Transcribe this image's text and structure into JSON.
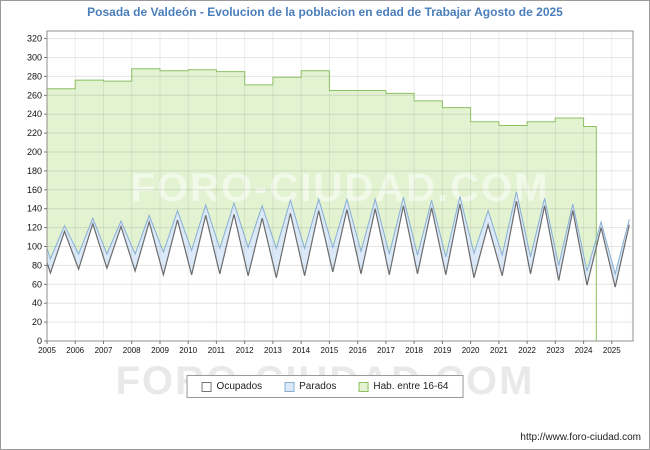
{
  "title": "Posada de Valdeón - Evolucion de la poblacion en edad de Trabajar Agosto de 2025",
  "watermark": "FORO-CIUDAD.COM",
  "footer": {
    "url": "http://www.foro-ciudad.com"
  },
  "colors": {
    "title": "#4a7ebb",
    "axis_border": "#8f8f8f",
    "hab_fill": "#e3f3d2",
    "hab_stroke": "#8cc063",
    "parados_fill": "#dbe9f8",
    "parados_stroke": "#88aed2",
    "ocupados_fill": "#ffffff",
    "ocupados_stroke": "#6b6b6b"
  },
  "legend": [
    {
      "label": "Ocupados",
      "color": "#ffffff",
      "border": "#777777"
    },
    {
      "label": "Parados",
      "color": "#dbe9f8",
      "border": "#88aed2"
    },
    {
      "label": "Hab. entre 16-64",
      "color": "#e3f3d2",
      "border": "#8cc063"
    }
  ],
  "chart_data": {
    "type": "area",
    "title": "Posada de Valdeón - Evolucion de la poblacion en edad de Trabajar Agosto de 2025",
    "xlabel": "",
    "ylabel": "",
    "ylim": [
      0,
      320
    ],
    "y_tick_step": 20,
    "x_ticks": [
      2005,
      2006,
      2007,
      2008,
      2009,
      2010,
      2011,
      2012,
      2013,
      2014,
      2015,
      2016,
      2017,
      2018,
      2019,
      2020,
      2021,
      2022,
      2023,
      2024,
      2025
    ],
    "grid": true,
    "legend_position": "bottom",
    "series": [
      {
        "id": "hab",
        "name": "Hab. entre 16-64",
        "style": "step-area",
        "fill": "#e3f3d2",
        "stroke": "#8cc063",
        "years": [
          2005,
          2006,
          2007,
          2008,
          2009,
          2010,
          2011,
          2012,
          2013,
          2014,
          2015,
          2016,
          2017,
          2018,
          2019,
          2020,
          2021,
          2022,
          2023,
          2024
        ],
        "values": [
          267,
          276,
          275,
          288,
          286,
          287,
          285,
          271,
          279,
          286,
          265,
          265,
          262,
          254,
          247,
          232,
          228,
          232,
          236,
          227
        ],
        "end_x": 2024.45
      },
      {
        "id": "parados",
        "name": "Parados",
        "style": "area-stacked-on-ocupados",
        "fill": "#dbe9f8",
        "stroke": "#88aed2",
        "years": [
          2005,
          2006,
          2007,
          2008,
          2009,
          2010,
          2011,
          2012,
          2013,
          2014,
          2015,
          2016,
          2017,
          2018,
          2019,
          2020,
          2021,
          2022,
          2023,
          2024,
          2025
        ],
        "winter": [
          15,
          16,
          15,
          18,
          24,
          26,
          27,
          30,
          31,
          29,
          26,
          24,
          22,
          20,
          19,
          26,
          22,
          18,
          16,
          15,
          14
        ],
        "summer": [
          6,
          6,
          6,
          7,
          10,
          11,
          12,
          13,
          14,
          12,
          11,
          10,
          9,
          8,
          8,
          15,
          10,
          8,
          7,
          6,
          6
        ]
      },
      {
        "id": "ocupados",
        "name": "Ocupados",
        "style": "line",
        "fill": "#ffffff",
        "stroke": "#6b6b6b",
        "years": [
          2005,
          2006,
          2007,
          2008,
          2009,
          2010,
          2011,
          2012,
          2013,
          2014,
          2015,
          2016,
          2017,
          2018,
          2019,
          2020,
          2021,
          2022,
          2023,
          2024,
          2025
        ],
        "winter": [
          72,
          76,
          77,
          74,
          70,
          70,
          71,
          69,
          67,
          69,
          73,
          71,
          70,
          71,
          70,
          67,
          69,
          71,
          64,
          59,
          57
        ],
        "summer": [
          116,
          124,
          121,
          126,
          128,
          133,
          134,
          130,
          135,
          138,
          139,
          140,
          143,
          141,
          145,
          123,
          148,
          143,
          138,
          120,
          123
        ]
      }
    ]
  }
}
